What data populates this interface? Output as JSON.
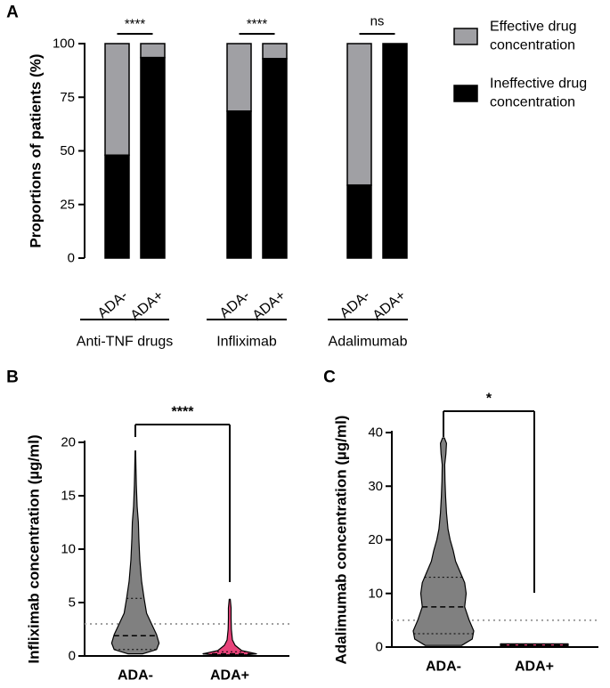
{
  "chart_data": [
    {
      "type": "bar",
      "panel_label": "A",
      "stacked": true,
      "ylabel": "Proportions of patients (%)",
      "ylim": [
        0,
        100
      ],
      "yticks": [
        0,
        25,
        50,
        75,
        100
      ],
      "groups": [
        {
          "label": "Anti-TNF drugs",
          "categories": [
            "ADA-",
            "ADA+"
          ],
          "significance": "****"
        },
        {
          "label": "Infliximab",
          "categories": [
            "ADA-",
            "ADA+"
          ],
          "significance": "****"
        },
        {
          "label": "Adalimumab",
          "categories": [
            "ADA-",
            "ADA+"
          ],
          "significance": "ns"
        }
      ],
      "series": [
        {
          "name": "Ineffective drug concentration",
          "color": "#000000",
          "values": [
            48,
            93.5,
            68.5,
            93,
            34,
            100
          ]
        },
        {
          "name": "Effective drug concentration",
          "color": "#a0a0a4",
          "values": [
            52,
            6.5,
            31.5,
            7,
            66,
            0
          ]
        }
      ],
      "legend": {
        "position": "top-right",
        "entries": [
          {
            "line1": "Effective drug",
            "line2": "concentration",
            "color": "#a0a0a4"
          },
          {
            "line1": "Ineffective drug",
            "line2": "concentration",
            "color": "#000000"
          }
        ]
      }
    },
    {
      "type": "violin",
      "panel_label": "B",
      "ylabel": "Infliximab concentration (µg/ml)",
      "ylim": [
        0,
        20
      ],
      "yticks": [
        0,
        5,
        10,
        15,
        20
      ],
      "categories": [
        "ADA-",
        "ADA+"
      ],
      "colors": [
        "#808080",
        "#e8437a"
      ],
      "threshold": 3,
      "significance": "****",
      "violins": [
        {
          "min": 0.2,
          "max": 19.2,
          "median": 1.9,
          "q1": 0.6,
          "q3": 5.4,
          "profile": [
            [
              0.2,
              0.3
            ],
            [
              0.6,
              0.85
            ],
            [
              1.2,
              0.95
            ],
            [
              2,
              0.85
            ],
            [
              3,
              0.65
            ],
            [
              4,
              0.45
            ],
            [
              5.4,
              0.35
            ],
            [
              7,
              0.25
            ],
            [
              9,
              0.18
            ],
            [
              11,
              0.14
            ],
            [
              12.5,
              0.12
            ],
            [
              14,
              0.07
            ],
            [
              16,
              0.04
            ],
            [
              17.5,
              0.025
            ],
            [
              19.2,
              0.01
            ]
          ]
        },
        {
          "min": 0.1,
          "max": 5.3,
          "median": 0.2,
          "q1": 0.1,
          "q3": 0.4,
          "profile": [
            [
              0.1,
              0.6
            ],
            [
              0.2,
              1
            ],
            [
              0.5,
              0.45
            ],
            [
              1,
              0.2
            ],
            [
              1.5,
              0.1
            ],
            [
              2.5,
              0.06
            ],
            [
              3.5,
              0.05
            ],
            [
              4.5,
              0.05
            ],
            [
              5.3,
              0.02
            ]
          ]
        }
      ]
    },
    {
      "type": "violin",
      "panel_label": "C",
      "ylabel": "Adalimumab concentration (µg/ml)",
      "ylim": [
        0,
        40
      ],
      "yticks": [
        0,
        10,
        20,
        30,
        40
      ],
      "categories": [
        "ADA-",
        "ADA+"
      ],
      "colors": [
        "#808080",
        "#e8437a"
      ],
      "threshold": 5,
      "significance": "*",
      "violins": [
        {
          "min": 0.3,
          "max": 39,
          "median": 7.5,
          "q1": 2.5,
          "q3": 13,
          "profile": [
            [
              0.3,
              0.6
            ],
            [
              1.5,
              0.95
            ],
            [
              3,
              1
            ],
            [
              5,
              0.85
            ],
            [
              7.5,
              0.7
            ],
            [
              10,
              0.75
            ],
            [
              12,
              0.7
            ],
            [
              14,
              0.55
            ],
            [
              16,
              0.4
            ],
            [
              18,
              0.32
            ],
            [
              20,
              0.22
            ],
            [
              22,
              0.15
            ],
            [
              25,
              0.1
            ],
            [
              28,
              0.07
            ],
            [
              31,
              0.05
            ],
            [
              34,
              0.04
            ],
            [
              36,
              0.08
            ],
            [
              38,
              0.1
            ],
            [
              39,
              0.03
            ]
          ]
        },
        {
          "min": 0.2,
          "max": 0.6,
          "median": 0.4,
          "q1": 0.3,
          "q3": 0.5,
          "profile": [
            [
              0.2,
              1
            ],
            [
              0.6,
              1
            ]
          ]
        }
      ]
    }
  ]
}
